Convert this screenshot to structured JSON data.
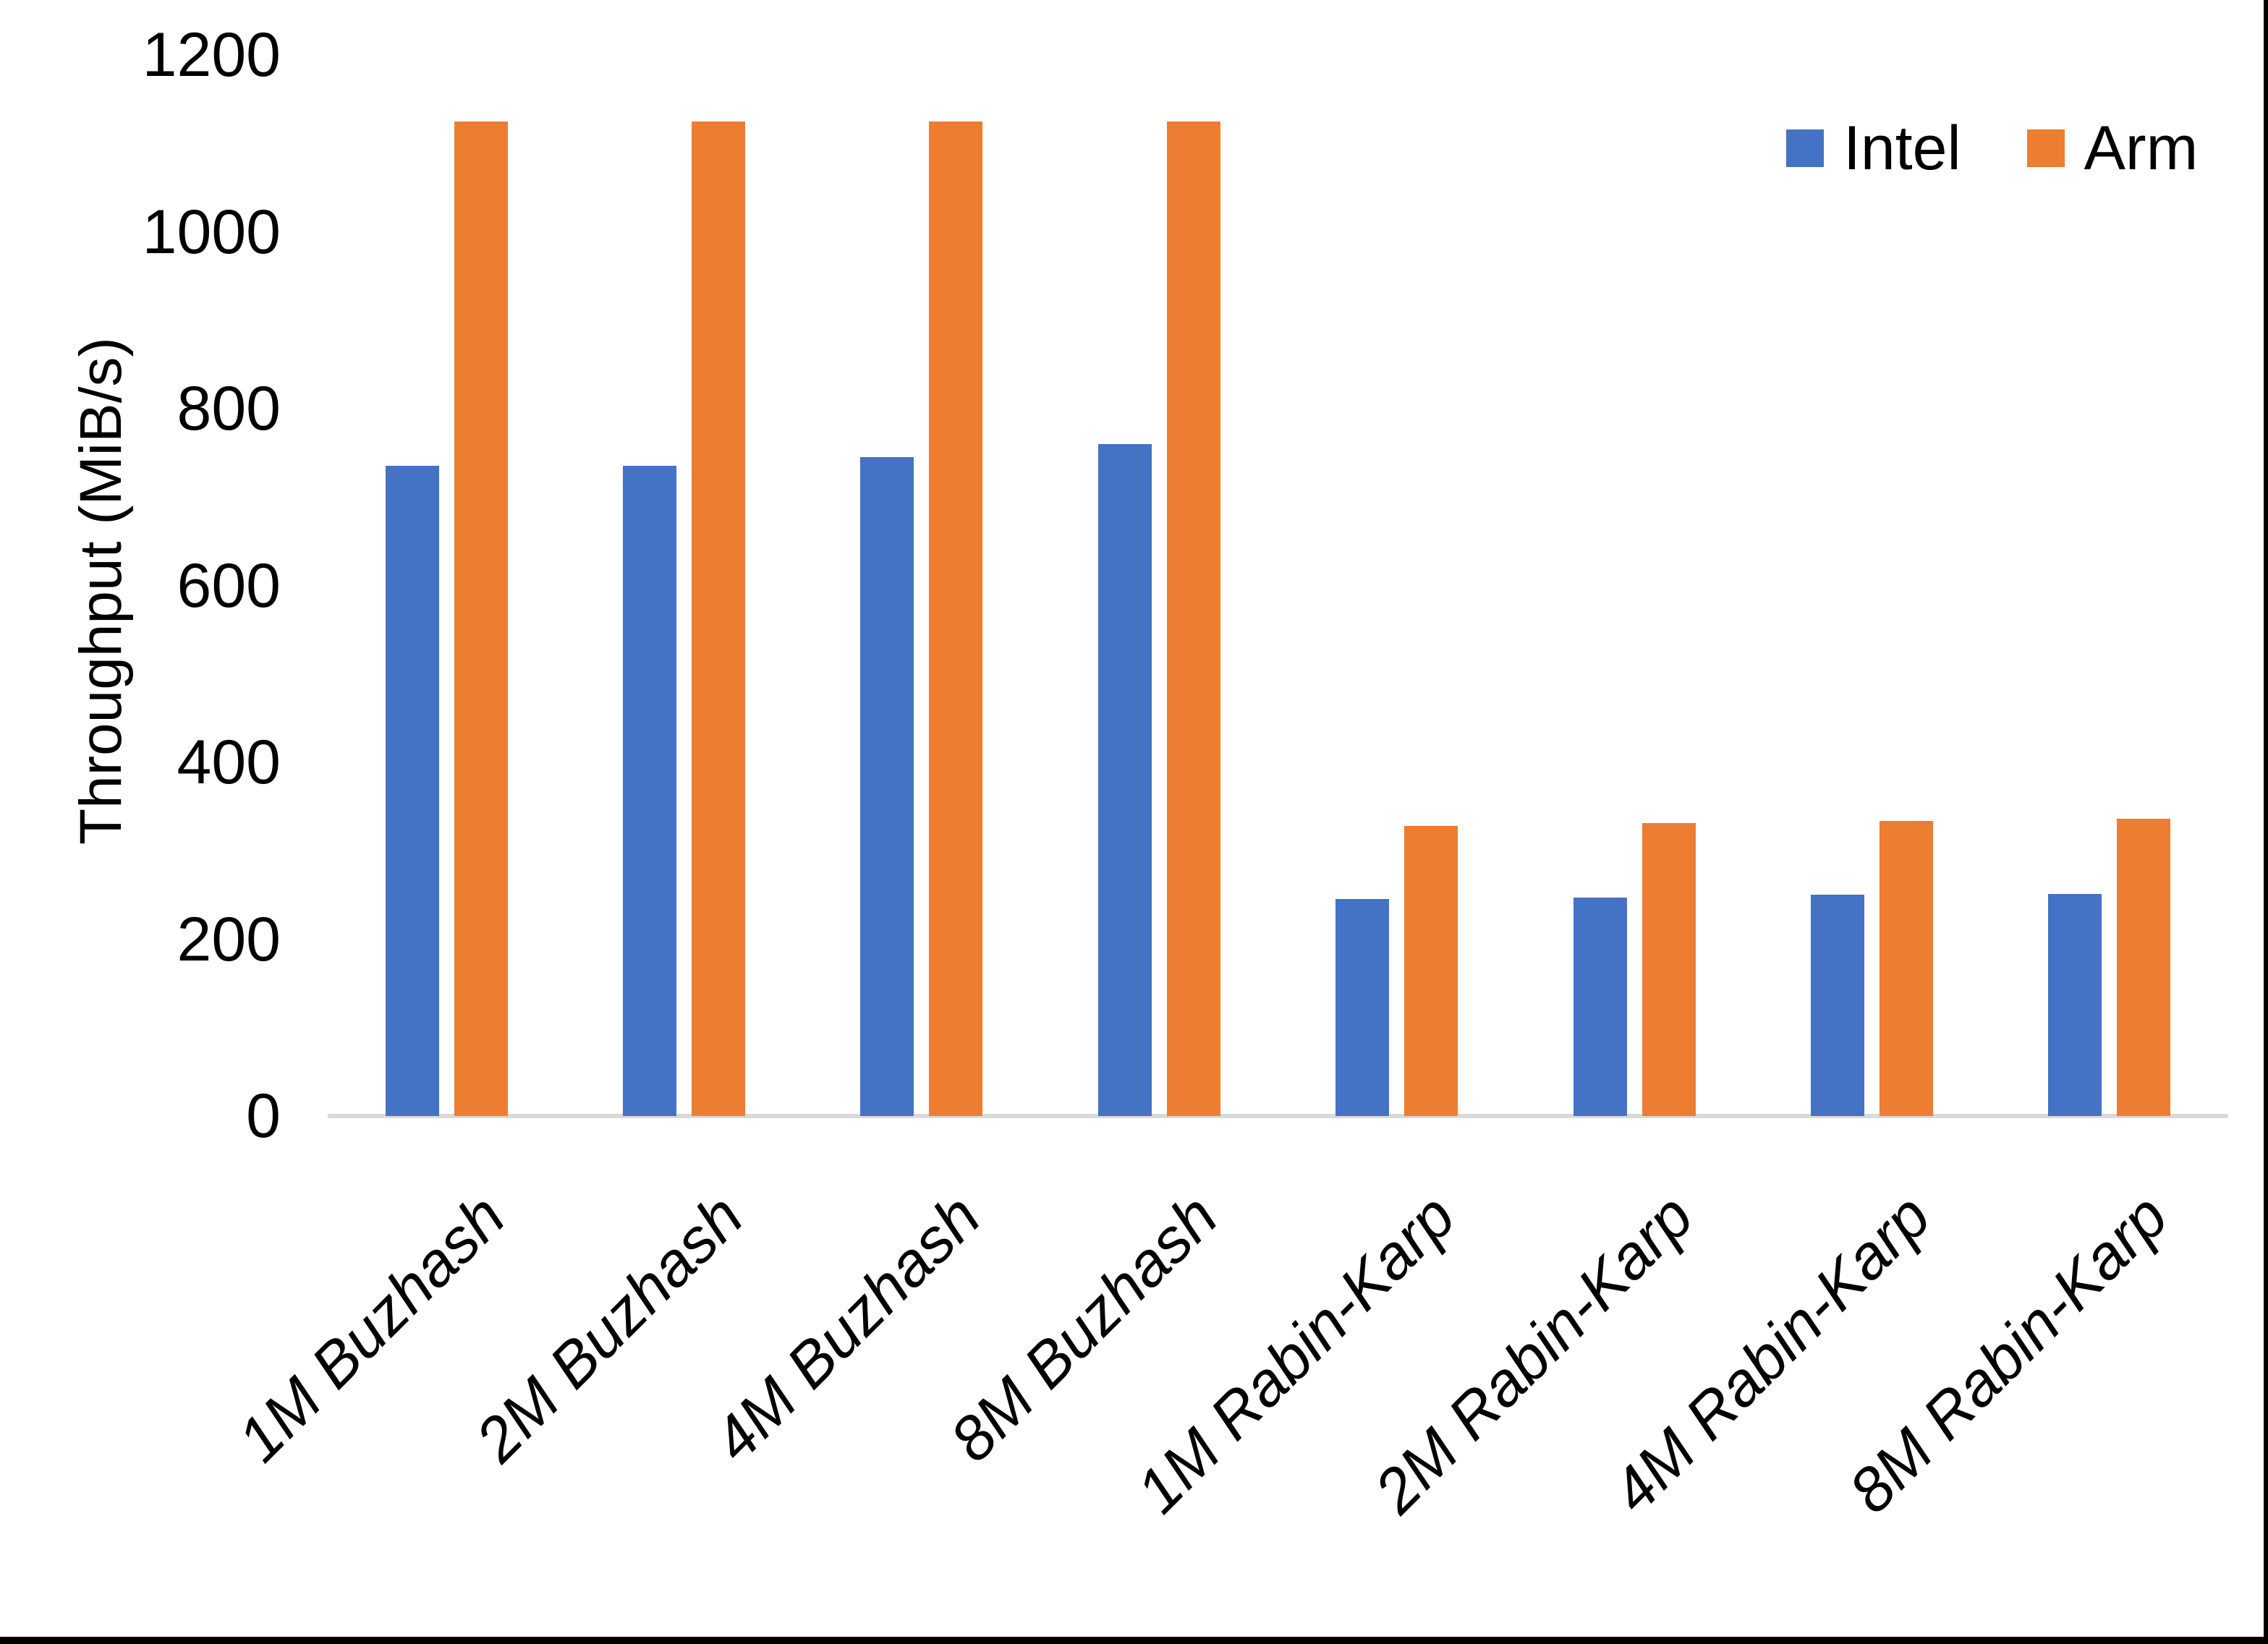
{
  "chart_data": {
    "type": "bar",
    "title": "",
    "ylabel": "Throughput (MiB/s)",
    "xlabel": "",
    "ylim": [
      0,
      1200
    ],
    "yticks": [
      0,
      200,
      400,
      600,
      800,
      1000,
      1200
    ],
    "grid": false,
    "legend_position": "top-right",
    "categories": [
      "1M Buzhash",
      "2M Buzhash",
      "4M Buzhash",
      "8M Buzhash",
      "1M Rabin-Karp",
      "2M Rabin-Karp",
      "4M Rabin-Karp",
      "8M Rabin-Karp"
    ],
    "series": [
      {
        "name": "Intel",
        "color": "#4472C4",
        "values": [
          735,
          735,
          745,
          760,
          245,
          247,
          250,
          251
        ]
      },
      {
        "name": "Arm",
        "color": "#ED7D31",
        "values": [
          1125,
          1125,
          1125,
          1125,
          328,
          331,
          334,
          336
        ]
      }
    ]
  }
}
